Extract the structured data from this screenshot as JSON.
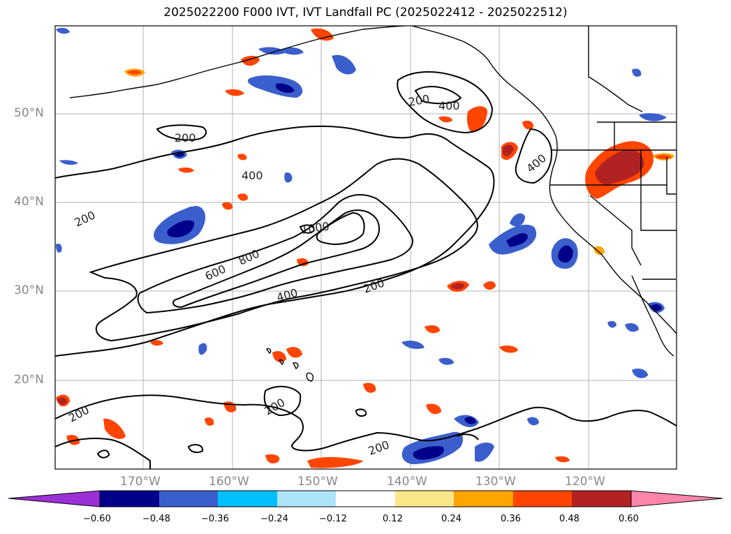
{
  "title": "2025022200 F000 IVT, IVT Landfall PC (2025022412 - 2025022512)",
  "lat_labels": [
    "50°N",
    "40°N",
    "30°N",
    "20°N"
  ],
  "lon_labels": [
    "170°W",
    "160°W",
    "150°W",
    "140°W",
    "130°W",
    "120°W"
  ],
  "contour_labels": [
    "200",
    "400",
    "200",
    "400",
    "400",
    "200",
    "1000",
    "800",
    "600",
    "400",
    "200",
    "200",
    "200",
    "200"
  ],
  "colorbar": {
    "ticks": [
      "−0.60",
      "−0.48",
      "−0.36",
      "−0.24",
      "−0.12",
      "0.12",
      "0.24",
      "0.36",
      "0.48",
      "0.60"
    ],
    "colors": [
      "#9b30d6",
      "#00008b",
      "#3a5fcd",
      "#00bfff",
      "#aee4fa",
      "#ffffff",
      "#fce68a",
      "#ffa500",
      "#ff4500",
      "#b22222",
      "#ff85aa"
    ]
  },
  "colors": {
    "coast": "#000000",
    "contour": "#000000",
    "grid": "#b0b0b0"
  }
}
